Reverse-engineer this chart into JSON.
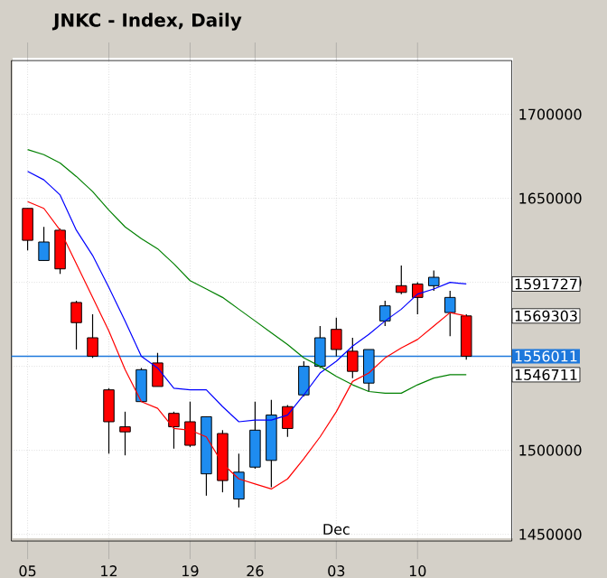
{
  "chart_data": {
    "type": "candlestick",
    "title": "JNKC - Index, Daily",
    "categories": [
      "05",
      null,
      null,
      null,
      null,
      "12",
      null,
      null,
      null,
      null,
      "19",
      null,
      null,
      null,
      "26",
      null,
      null,
      null,
      null,
      "03",
      null,
      null,
      null,
      null,
      "10",
      null,
      null,
      null
    ],
    "series": [
      {
        "ohlc": [
          [
            1644000,
            1644000,
            1619000,
            1625000
          ],
          [
            1613000,
            1633000,
            1613000,
            1624000
          ],
          [
            1631000,
            1632000,
            1605000,
            1608000
          ],
          [
            1588000,
            1589000,
            1560000,
            1576000
          ],
          [
            1567000,
            1581000,
            1555000,
            1556000
          ],
          [
            1536000,
            1537000,
            1498000,
            1517000
          ],
          [
            1514000,
            1523000,
            1497000,
            1511000
          ],
          [
            1529000,
            1549000,
            1529000,
            1548000
          ],
          [
            1552000,
            1558000,
            1538000,
            1538000
          ],
          [
            1522000,
            1523000,
            1501000,
            1514000
          ],
          [
            1517000,
            1529000,
            1502000,
            1503000
          ],
          [
            1486000,
            1520000,
            1473000,
            1520000
          ],
          [
            1510000,
            1512000,
            1475000,
            1482000
          ],
          [
            1471000,
            1498000,
            1466000,
            1487000
          ],
          [
            1490000,
            1529000,
            1489000,
            1512000
          ],
          [
            1494000,
            1530000,
            1478000,
            1521000
          ],
          [
            1526000,
            1527000,
            1508000,
            1513000
          ],
          [
            1533000,
            1553000,
            1532000,
            1550000
          ],
          [
            1550000,
            1574000,
            1549000,
            1567000
          ],
          [
            1572000,
            1579000,
            1556000,
            1560000
          ],
          [
            1559000,
            1567000,
            1543000,
            1547000
          ],
          [
            1540000,
            1560000,
            1535000,
            1560000
          ],
          [
            1577000,
            1589000,
            1574000,
            1586000
          ],
          [
            1598000,
            1610000,
            1593000,
            1594000
          ],
          [
            1599000,
            1600000,
            1581000,
            1591000
          ],
          [
            1598000,
            1607000,
            1595000,
            1603000
          ],
          [
            1582000,
            1595000,
            1568000,
            1591000
          ],
          [
            1580000,
            1581000,
            1554000,
            1556011
          ]
        ],
        "colors": [
          "#ff0000",
          "#1e8cf0",
          "#ff0000",
          "#ff0000",
          "#ff0000",
          "#ff0000",
          "#ff0000",
          "#1e8cf0",
          "#ff0000",
          "#ff0000",
          "#ff0000",
          "#1e8cf0",
          "#ff0000",
          "#1e8cf0",
          "#1e8cf0",
          "#1e8cf0",
          "#ff0000",
          "#1e8cf0",
          "#1e8cf0",
          "#ff0000",
          "#ff0000",
          "#1e8cf0",
          "#1e8cf0",
          "#ff0000",
          "#ff0000",
          "#1e8cf0",
          "#1e8cf0",
          "#ff0000"
        ]
      },
      {
        "type": "line",
        "color": "#0000ff",
        "values": [
          1666000,
          1661000,
          1652000,
          1631000,
          1616000,
          1597000,
          1577000,
          1556000,
          1549000,
          1537000,
          1536000,
          1536000,
          1526000,
          1517000,
          1518000,
          1518000,
          1521000,
          1533000,
          1546000,
          1553000,
          1562000,
          1569000,
          1577000,
          1584000,
          1593000,
          1596000,
          1600000,
          1599000
        ]
      },
      {
        "type": "line",
        "color": "#ff0000",
        "values": [
          1648000,
          1644000,
          1631000,
          1611000,
          1591000,
          1571000,
          1548000,
          1529000,
          1525000,
          1513000,
          1512000,
          1508000,
          1492000,
          1483000,
          1480000,
          1477000,
          1483000,
          1495000,
          1508000,
          1523000,
          1541000,
          1546000,
          1555000,
          1561000,
          1566000,
          1574000,
          1582000,
          1580000
        ]
      },
      {
        "type": "line",
        "color": "#008000",
        "values": [
          1679000,
          1676000,
          1671000,
          1663000,
          1654000,
          1643000,
          1633000,
          1626000,
          1620000,
          1611000,
          1601000,
          1596000,
          1591000,
          1584000,
          1577000,
          1570000,
          1563000,
          1555000,
          1550000,
          1544000,
          1539000,
          1535000,
          1534000,
          1534000,
          1539000,
          1543000,
          1545000,
          1545000
        ]
      }
    ],
    "ylim": [
      1446000,
      1732000
    ],
    "yticks": [
      1450000,
      1500000,
      {
        "value": 1550000,
        "label": null
      },
      1600000,
      1650000,
      1700000
    ],
    "ref_lines": [
      {
        "axis": "y",
        "value": 1556011,
        "label": "1556011",
        "color": "#1e78dc"
      }
    ],
    "annotations": [
      "1591727",
      "1569303",
      "1546711",
      "Dec"
    ],
    "grid": true,
    "marker": "none",
    "line_style": "solid"
  }
}
